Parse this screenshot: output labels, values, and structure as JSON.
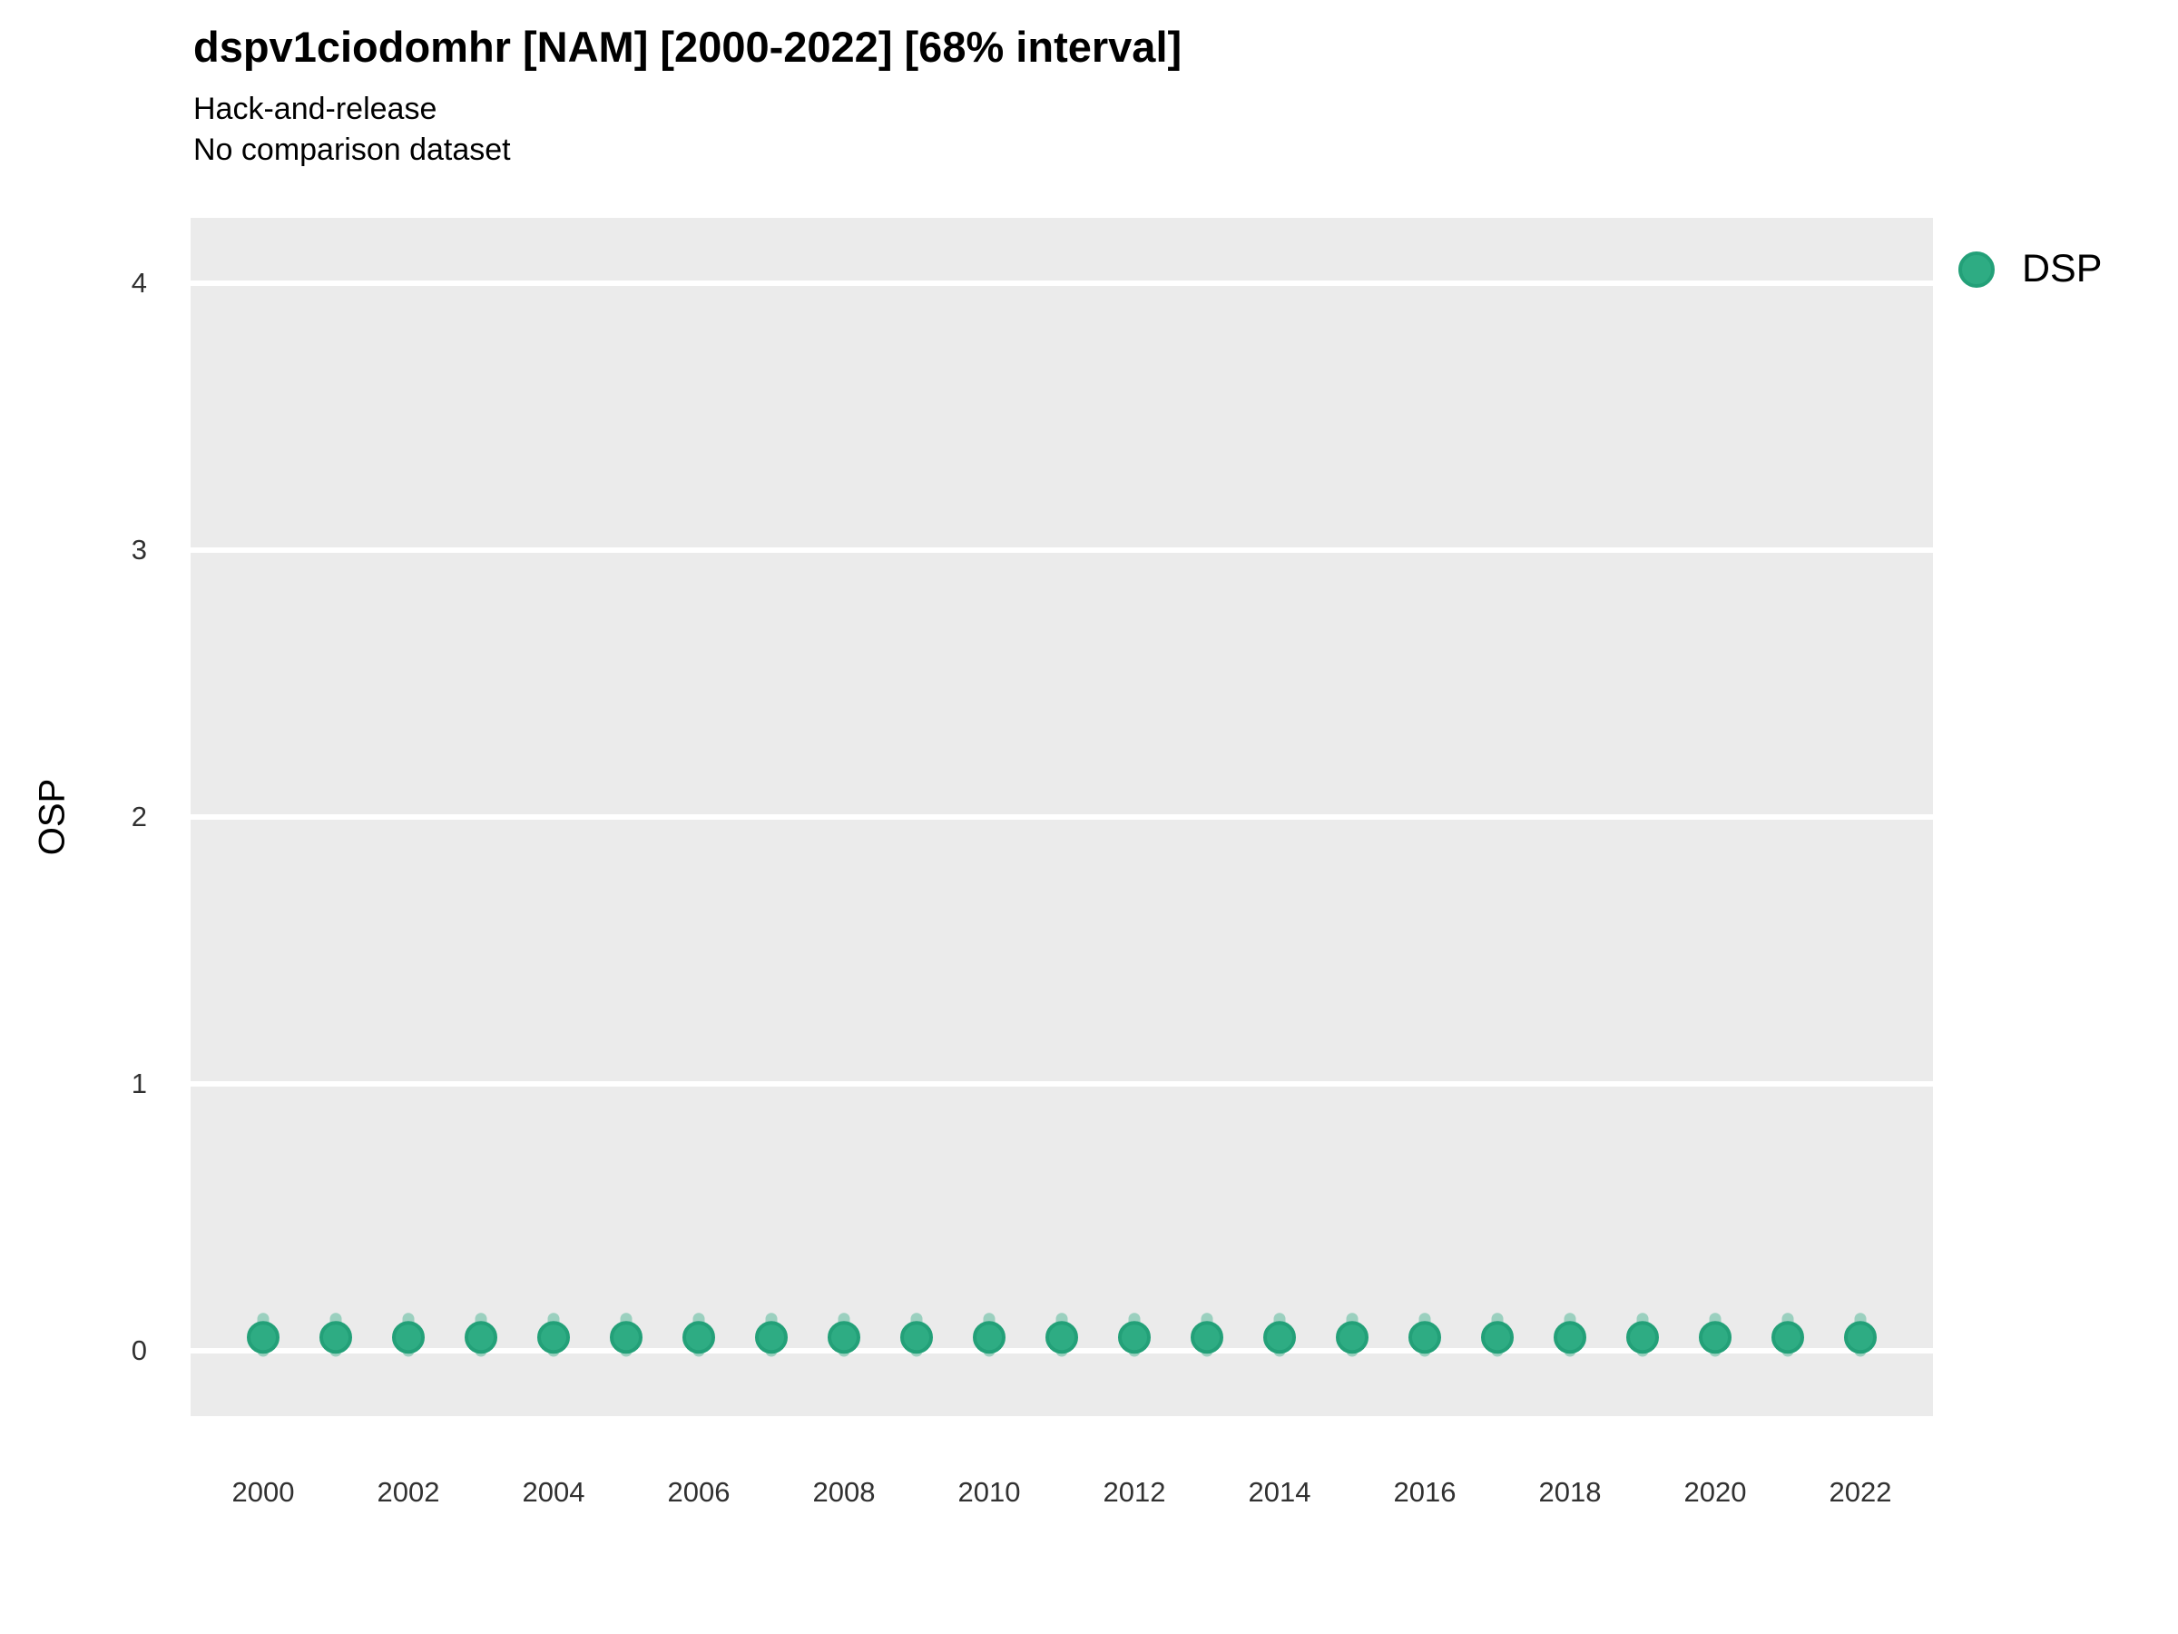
{
  "figure": {
    "title": "dspv1ciodomhr [NAM] [2000-2022] [68% interval]",
    "subtitle_line1": "Hack-and-release",
    "subtitle_line2": "No comparison dataset"
  },
  "legend": {
    "position": "right-top",
    "entries": [
      {
        "label": "DSP",
        "color": "#2EAC83",
        "border_color": "#23A078"
      }
    ]
  },
  "chart_data": {
    "type": "scatter",
    "title": "dspv1ciodomhr [NAM] [2000-2022] [68% interval]",
    "subtitle1": "Hack-and-release",
    "subtitle2": "No comparison dataset",
    "xlabel": "",
    "ylabel": "OSP",
    "interval_note": "68% interval shown as faint vertical bar behind each point",
    "panel_bg": "#EBEBEB",
    "gridline_color": "#FFFFFF",
    "grid": "major-horizontal-only",
    "legend_position": "right",
    "x": [
      2000,
      2001,
      2002,
      2003,
      2004,
      2005,
      2006,
      2007,
      2008,
      2009,
      2010,
      2011,
      2012,
      2013,
      2014,
      2015,
      2016,
      2017,
      2018,
      2019,
      2020,
      2021,
      2022
    ],
    "series": [
      {
        "name": "DSP",
        "values": [
          0.05,
          0.05,
          0.05,
          0.05,
          0.05,
          0.05,
          0.05,
          0.05,
          0.05,
          0.05,
          0.05,
          0.05,
          0.05,
          0.05,
          0.05,
          0.05,
          0.05,
          0.05,
          0.05,
          0.05,
          0.05,
          0.05,
          0.05
        ],
        "interval_low": [
          0,
          0,
          0,
          0,
          0,
          0,
          0,
          0,
          0,
          0,
          0,
          0,
          0,
          0,
          0,
          0,
          0,
          0,
          0,
          0,
          0,
          0,
          0
        ],
        "interval_high": [
          0.12,
          0.12,
          0.12,
          0.12,
          0.12,
          0.12,
          0.12,
          0.12,
          0.12,
          0.12,
          0.12,
          0.12,
          0.12,
          0.12,
          0.12,
          0.12,
          0.12,
          0.12,
          0.12,
          0.12,
          0.12,
          0.12,
          0.12
        ],
        "point_color": "#2EAC83",
        "point_stroke": "#23A078",
        "interval_color": "rgba(46, 172, 131, 0.42)"
      }
    ],
    "xticks": [
      2000,
      2002,
      2004,
      2006,
      2008,
      2010,
      2012,
      2014,
      2016,
      2018,
      2020,
      2022
    ],
    "xtick_labels": [
      "2000",
      "2002",
      "2004",
      "2006",
      "2008",
      "2010",
      "2012",
      "2014",
      "2016",
      "2018",
      "2020",
      "2022"
    ],
    "yticks": [
      0,
      1,
      2,
      3,
      4
    ],
    "ytick_labels": [
      "0",
      "1",
      "2",
      "3",
      "4"
    ],
    "ylim": [
      -0.245,
      4.245
    ],
    "xlim": [
      2000,
      2022
    ]
  }
}
